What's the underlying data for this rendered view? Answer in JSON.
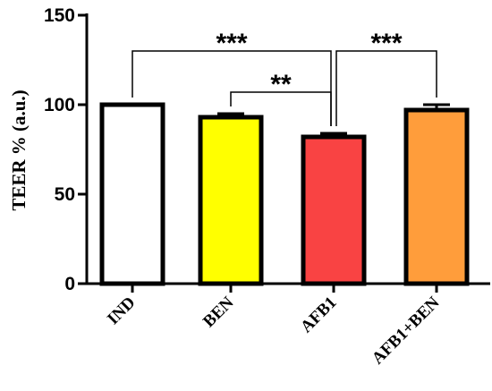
{
  "chart_data": {
    "type": "bar",
    "categories": [
      "IND",
      "BEN",
      "AFB1",
      "AFB1+BEN"
    ],
    "values": [
      100,
      93,
      82,
      97
    ],
    "errors": [
      0,
      2,
      2,
      3
    ],
    "colors": [
      "#ffffff",
      "#ffff00",
      "#f94343",
      "#ff9d3b"
    ],
    "ylabel": "TEER % (a.u.)",
    "ylim": [
      0,
      150
    ],
    "yticks": [
      0,
      50,
      100,
      150
    ],
    "significance": [
      {
        "from": 0,
        "to": 2,
        "label": "***",
        "level": 3
      },
      {
        "from": 1,
        "to": 2,
        "label": "**",
        "level": 1
      },
      {
        "from": 2,
        "to": 3,
        "label": "***",
        "level": 3
      }
    ]
  }
}
